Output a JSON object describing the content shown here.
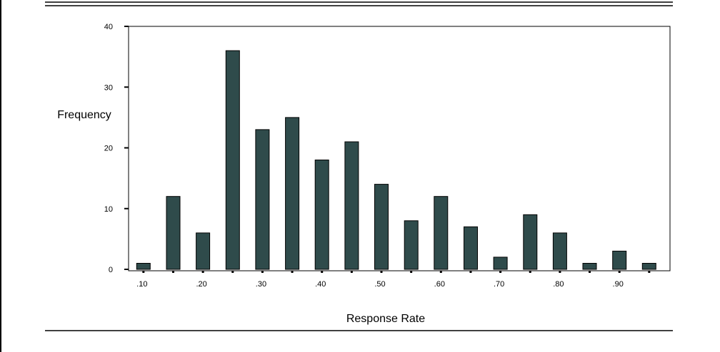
{
  "chart_data": {
    "type": "bar",
    "xlabel": "Response Rate",
    "ylabel": "Frequency",
    "ylim": [
      0,
      40
    ],
    "yticks": [
      0,
      10,
      20,
      30,
      40
    ],
    "xlim": [
      0.075,
      0.985
    ],
    "xticks": [
      ".10",
      ".20",
      ".30",
      ".40",
      ".50",
      ".60",
      ".70",
      ".80",
      ".90"
    ],
    "xtick_values": [
      0.1,
      0.2,
      0.3,
      0.4,
      0.5,
      0.6,
      0.7,
      0.8,
      0.9
    ],
    "bin_centers": [
      0.1,
      0.15,
      0.2,
      0.25,
      0.3,
      0.35,
      0.4,
      0.45,
      0.5,
      0.55,
      0.6,
      0.65,
      0.7,
      0.75,
      0.8,
      0.85,
      0.9,
      0.95
    ],
    "values": [
      1,
      12,
      6,
      36,
      23,
      25,
      18,
      21,
      14,
      8,
      12,
      7,
      2,
      9,
      6,
      1,
      3,
      1
    ],
    "bar_color": "#2f4b4b",
    "grid": false
  }
}
